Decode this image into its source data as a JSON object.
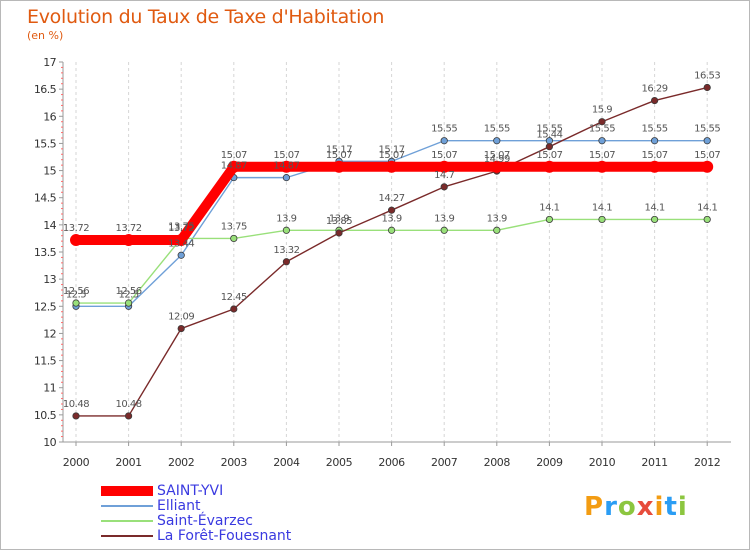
{
  "header": {
    "title": "Evolution du Taux de Taxe d'Habitation",
    "subtitle": "(en %)"
  },
  "logo": {
    "text": "Proxiti",
    "colors": [
      "#f39c12",
      "#2a9df4",
      "#8cc63f",
      "#e74c3c",
      "#f39c12",
      "#2a9df4",
      "#8cc63f"
    ]
  },
  "chart_data": {
    "type": "line",
    "title": "Evolution du Taux de Taxe d'Habitation",
    "ylabel": "(en %)",
    "xlabel": "",
    "x": [
      2000,
      2001,
      2002,
      2003,
      2004,
      2005,
      2006,
      2007,
      2008,
      2009,
      2010,
      2011,
      2012
    ],
    "ylim": [
      10,
      17
    ],
    "yticks": [
      10,
      10.5,
      11,
      11.5,
      12,
      12.5,
      13,
      13.5,
      14,
      14.5,
      15,
      15.5,
      16,
      16.5,
      17
    ],
    "grid": "vertical dashed",
    "legend_position": "bottom-left",
    "series": [
      {
        "name": "SAINT-YVI",
        "color": "#ff0000",
        "values": [
          13.72,
          13.72,
          13.72,
          15.07,
          15.07,
          15.07,
          15.07,
          15.07,
          15.07,
          15.07,
          15.07,
          15.07,
          15.07
        ]
      },
      {
        "name": "Elliant",
        "color": "#6fa0d8",
        "values": [
          12.5,
          12.5,
          13.44,
          14.87,
          14.87,
          15.17,
          15.17,
          15.55,
          15.55,
          15.55,
          15.55,
          15.55,
          15.55
        ]
      },
      {
        "name": "Saint-Évarzec",
        "color": "#99e07a",
        "values": [
          12.56,
          12.56,
          13.75,
          13.75,
          13.9,
          13.9,
          13.9,
          13.9,
          13.9,
          14.1,
          14.1,
          14.1,
          14.1
        ]
      },
      {
        "name": "La Forêt-Fouesnant",
        "color": "#7a2a2a",
        "values": [
          10.48,
          10.48,
          12.09,
          12.45,
          13.32,
          13.85,
          14.27,
          14.7,
          14.99,
          15.44,
          15.9,
          16.29,
          16.53
        ]
      }
    ]
  }
}
